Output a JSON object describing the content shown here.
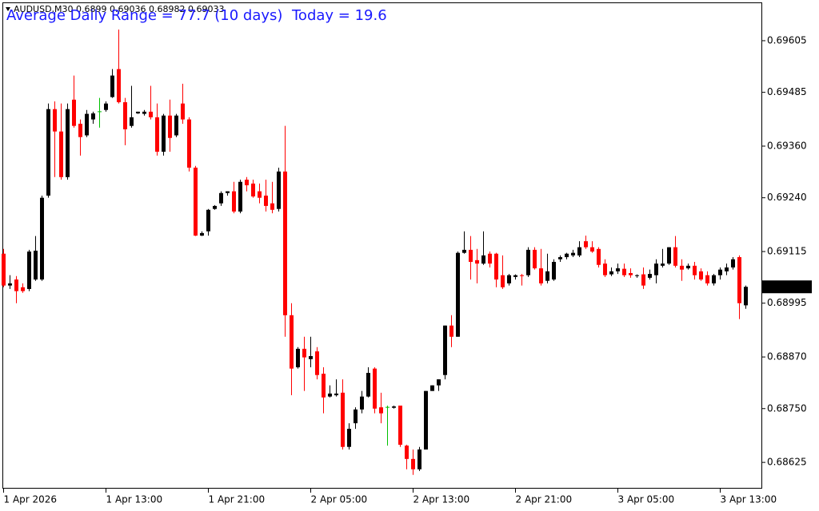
{
  "chart_data": {
    "type": "candlestick",
    "symbol": "AUDUSD,M30",
    "annotations": [
      "Average Daily Range = 77.7 (10 days)",
      "Today = 19.6"
    ],
    "x": [
      "1 Apr 2026",
      null,
      null,
      null,
      null,
      null,
      null,
      null,
      null,
      null,
      null,
      null,
      null,
      null,
      null,
      null,
      "1 Apr 13:00",
      null,
      null,
      null,
      null,
      null,
      null,
      null,
      null,
      null,
      null,
      null,
      null,
      null,
      null,
      null,
      "1 Apr 21:00",
      null,
      null,
      null,
      null,
      null,
      null,
      null,
      null,
      null,
      null,
      null,
      null,
      null,
      null,
      null,
      "2 Apr 05:00",
      null,
      null,
      null,
      null,
      null,
      null,
      null,
      null,
      null,
      null,
      null,
      null,
      null,
      null,
      null,
      "2 Apr 13:00",
      null,
      null,
      null,
      null,
      null,
      null,
      null,
      null,
      null,
      null,
      null,
      null,
      null,
      null,
      null,
      "2 Apr 21:00",
      null,
      null,
      null,
      null,
      null,
      null,
      null,
      null,
      null,
      null,
      null,
      null,
      null,
      null,
      null,
      "3 Apr 05:00",
      null,
      null,
      null,
      null,
      null,
      null,
      null,
      null,
      null,
      null,
      null,
      null,
      null,
      null,
      null,
      "3 Apr 13:00",
      null,
      null,
      null,
      null
    ],
    "open": [
      0.6911,
      0.69036,
      0.6905,
      0.69032,
      0.69028,
      0.6905,
      0.6905,
      0.69245,
      0.69446,
      0.69394,
      0.69288,
      0.69468,
      0.69412,
      0.69385,
      0.69422,
      0.6944,
      0.69444,
      0.69474,
      0.69539,
      0.69462,
      0.69407,
      0.69436,
      0.69435,
      0.6944,
      0.69427,
      0.69347,
      0.69431,
      0.69385,
      0.69459,
      0.69422,
      0.6931,
      0.69152,
      0.69162,
      0.69214,
      0.69227,
      0.69251,
      0.69255,
      0.69208,
      0.69282,
      0.69273,
      0.69255,
      0.69245,
      0.69227,
      0.69214,
      0.69301,
      0.68967,
      0.68846,
      0.68889,
      0.68865,
      0.68883,
      0.68831,
      0.68778,
      0.68781,
      0.68787,
      0.68661,
      0.68716,
      0.68748,
      0.68778,
      0.68843,
      0.68753,
      0.68753,
      0.68752,
      0.68757,
      0.68664,
      0.68633,
      0.68609,
      0.68655,
      0.68791,
      0.68804,
      0.68828,
      0.68943,
      0.68917,
      0.69112,
      0.69119,
      0.69095,
      0.69087,
      0.6911,
      0.6911,
      0.6906,
      0.69041,
      0.69056,
      0.6906,
      0.6906,
      0.69119,
      0.69076,
      0.69047,
      0.6905,
      0.69097,
      0.69102,
      0.69106,
      0.69106,
      0.69139,
      0.69125,
      0.69121,
      0.69087,
      0.69062,
      0.69069,
      0.69075,
      0.69065,
      0.69058,
      0.69062,
      0.69054,
      0.6906,
      0.69082,
      0.69087,
      0.69125,
      0.69082,
      0.69076,
      0.69082,
      0.69069,
      0.6906,
      0.69041,
      0.6906,
      0.69069,
      0.69078,
      0.69102,
      0.6899
    ],
    "high": [
      0.69121,
      0.6906,
      0.69058,
      0.69041,
      0.69119,
      0.69151,
      0.69245,
      0.69459,
      0.69464,
      0.69459,
      0.69459,
      0.69524,
      0.69422,
      0.69444,
      0.6944,
      0.69472,
      0.69464,
      0.69539,
      0.69631,
      0.69472,
      0.695,
      0.6944,
      0.69444,
      0.695,
      0.69459,
      0.69435,
      0.69468,
      0.69435,
      0.69505,
      0.69427,
      0.69314,
      0.69162,
      0.69214,
      0.69223,
      0.69255,
      0.69255,
      0.69277,
      0.69282,
      0.69288,
      0.69282,
      0.69273,
      0.69282,
      0.69277,
      0.6931,
      0.69407,
      0.68995,
      0.68893,
      0.68917,
      0.68917,
      0.68893,
      0.68846,
      0.68804,
      0.68818,
      0.68818,
      0.68716,
      0.68753,
      0.68791,
      0.68846,
      0.68846,
      0.68787,
      0.68757,
      0.68757,
      0.68757,
      0.68666,
      0.68655,
      0.68661,
      0.68791,
      0.68804,
      0.68818,
      0.68943,
      0.68967,
      0.69115,
      0.69162,
      0.69151,
      0.69121,
      0.69162,
      0.69115,
      0.69112,
      0.69106,
      0.69063,
      0.69062,
      0.69063,
      0.69125,
      0.69125,
      0.69121,
      0.6911,
      0.69097,
      0.69106,
      0.69112,
      0.69119,
      0.69139,
      0.69152,
      0.69139,
      0.69125,
      0.69097,
      0.69078,
      0.69087,
      0.69087,
      0.69076,
      0.69062,
      0.69078,
      0.69073,
      0.69097,
      0.69121,
      0.69125,
      0.69151,
      0.69097,
      0.69087,
      0.69091,
      0.69076,
      0.69069,
      0.69063,
      0.69078,
      0.69087,
      0.69102,
      0.69106,
      0.69036
    ],
    "low": [
      0.69032,
      0.69028,
      0.68995,
      0.69019,
      0.69023,
      0.69047,
      0.69047,
      0.6924,
      0.69288,
      0.69282,
      0.69282,
      0.69403,
      0.69338,
      0.69381,
      0.69412,
      0.69403,
      0.6944,
      0.69472,
      0.69459,
      0.69362,
      0.69403,
      0.69435,
      0.69431,
      0.69422,
      0.69338,
      0.69338,
      0.69347,
      0.69381,
      0.69412,
      0.69301,
      0.69151,
      0.69151,
      0.69152,
      0.69212,
      0.69221,
      0.69245,
      0.69204,
      0.69204,
      0.69255,
      0.6924,
      0.69227,
      0.69208,
      0.69204,
      0.69208,
      0.68917,
      0.68781,
      0.68843,
      0.68791,
      0.68846,
      0.68818,
      0.68739,
      0.68776,
      0.68778,
      0.68655,
      0.68655,
      0.68703,
      0.68739,
      0.68776,
      0.68739,
      0.68716,
      0.68664,
      0.6875,
      0.68661,
      0.68609,
      0.68596,
      0.68605,
      0.68655,
      0.68791,
      0.68791,
      0.68818,
      0.68893,
      0.68917,
      0.6911,
      0.6905,
      0.69041,
      0.69084,
      0.69078,
      0.69032,
      0.69028,
      0.69036,
      0.6905,
      0.69036,
      0.69056,
      0.69073,
      0.69036,
      0.69041,
      0.69047,
      0.69091,
      0.69097,
      0.69102,
      0.69102,
      0.69121,
      0.69112,
      0.69078,
      0.69056,
      0.69058,
      0.69063,
      0.69056,
      0.69054,
      0.69054,
      0.69028,
      0.6905,
      0.69041,
      0.69078,
      0.69084,
      0.69078,
      0.69047,
      0.69073,
      0.6905,
      0.69047,
      0.69036,
      0.69036,
      0.6905,
      0.6906,
      0.69073,
      0.68958,
      0.68982
    ],
    "close": [
      0.69036,
      0.69041,
      0.69023,
      0.69023,
      0.69115,
      0.69117,
      0.6924,
      0.69446,
      0.69394,
      0.69288,
      0.69446,
      0.69407,
      0.69381,
      0.69435,
      0.69436,
      0.6944,
      0.69459,
      0.69524,
      0.69462,
      0.69399,
      0.69427,
      0.6944,
      0.6944,
      0.69427,
      0.69347,
      0.69431,
      0.69379,
      0.69431,
      0.69422,
      0.6931,
      0.69152,
      0.69158,
      0.69212,
      0.69221,
      0.69251,
      0.69255,
      0.69208,
      0.69277,
      0.69269,
      0.69243,
      0.6924,
      0.69221,
      0.69212,
      0.69301,
      0.68967,
      0.68843,
      0.68889,
      0.68869,
      0.68872,
      0.68828,
      0.68776,
      0.68785,
      0.68785,
      0.68661,
      0.68703,
      0.68748,
      0.68778,
      0.68833,
      0.6875,
      0.68739,
      0.68753,
      0.68755,
      0.68666,
      0.68633,
      0.68609,
      0.68655,
      0.68791,
      0.68804,
      0.68818,
      0.68943,
      0.68917,
      0.69112,
      0.69119,
      0.69091,
      0.69087,
      0.69106,
      0.69087,
      0.6905,
      0.69032,
      0.6906,
      0.6906,
      0.69058,
      0.69119,
      0.69076,
      0.69041,
      0.69069,
      0.69091,
      0.69102,
      0.6911,
      0.69112,
      0.69125,
      0.69125,
      0.69115,
      0.69084,
      0.6906,
      0.69069,
      0.69076,
      0.6906,
      0.6906,
      0.6906,
      0.69036,
      0.69063,
      0.69087,
      0.69087,
      0.69125,
      0.69082,
      0.69073,
      0.69082,
      0.6906,
      0.6905,
      0.69041,
      0.6906,
      0.69073,
      0.69078,
      0.69097,
      0.68995,
      0.69033
    ],
    "up_color": "#000000",
    "down_color": "#ff0000",
    "doji_color": "#00c000",
    "ylim": [
      0.68564,
      0.69694
    ],
    "yticks": [
      0.69605,
      0.69485,
      {
        "value": 0.6936,
        "label": "0.69360"
      },
      {
        "value": 0.6924,
        "label": "0.69240"
      },
      0.69115,
      0.68995,
      {
        "value": 0.6887,
        "label": "0.68870"
      },
      {
        "value": 0.6875,
        "label": "0.68750"
      },
      0.68625
    ]
  }
}
